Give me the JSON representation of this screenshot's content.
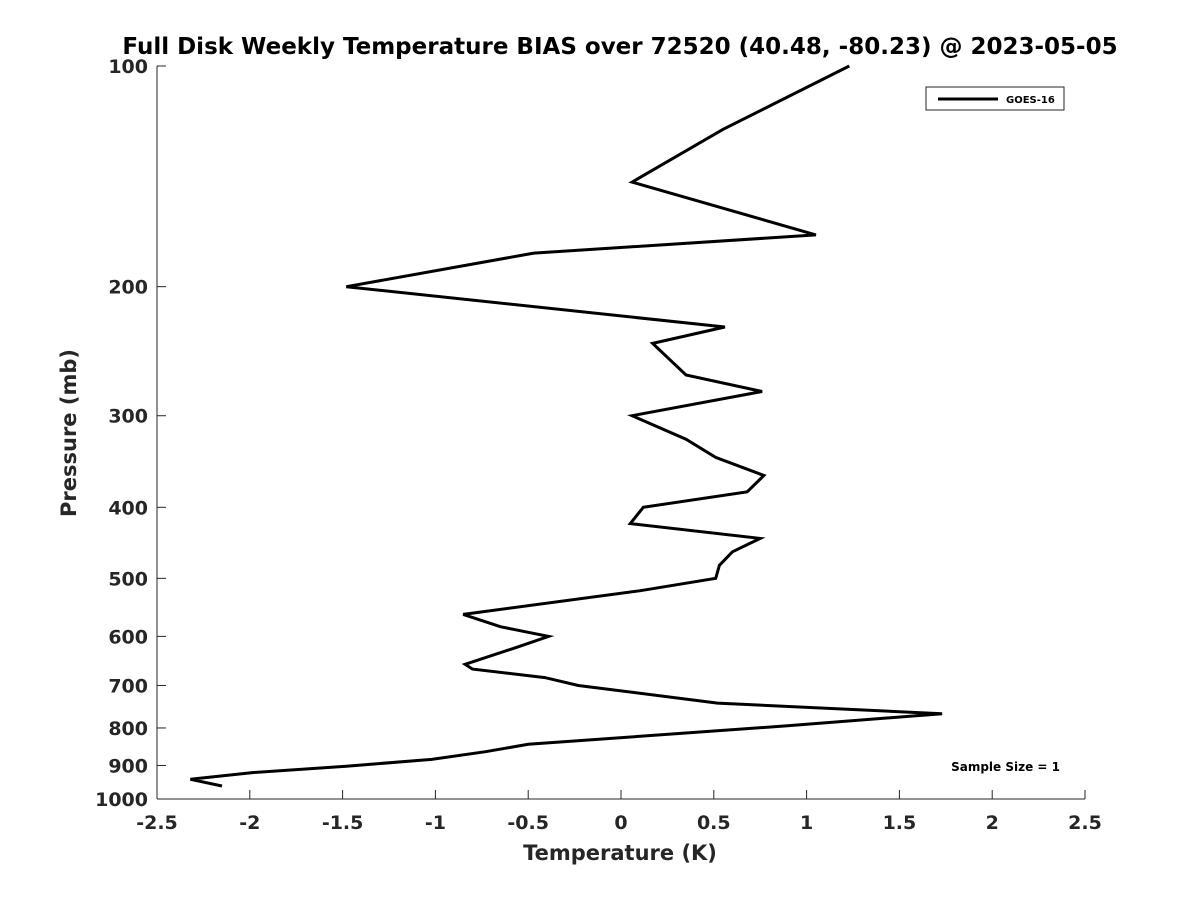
{
  "chart_data": {
    "type": "line",
    "title": "Full Disk Weekly Temperature BIAS over 72520 (40.48, -80.23) @ 2023-05-05",
    "xlabel": "Temperature (K)",
    "ylabel": "Pressure (mb)",
    "xlim": [
      -2.5,
      2.5
    ],
    "ylim": [
      1000,
      100
    ],
    "y_scale": "log",
    "y_reversed": true,
    "grid": false,
    "x_ticks": [
      -2.5,
      -2,
      -1.5,
      -1,
      -0.5,
      0,
      0.5,
      1,
      1.5,
      2,
      2.5
    ],
    "x_tick_labels": [
      "-2.5",
      "-2",
      "-1.5",
      "-1",
      "-0.5",
      "0",
      "0.5",
      "1",
      "1.5",
      "2",
      "2.5"
    ],
    "y_ticks": [
      100,
      200,
      300,
      400,
      500,
      600,
      700,
      800,
      900,
      1000
    ],
    "y_tick_labels": [
      "100",
      "200",
      "300",
      "400",
      "500",
      "600",
      "700",
      "800",
      "900",
      "1000"
    ],
    "legend_position": "top-right",
    "series": [
      {
        "name": "GOES-16",
        "color": "#000000",
        "x": [
          1.23,
          0.55,
          0.06,
          1.05,
          -0.47,
          -1.48,
          0.56,
          0.17,
          0.35,
          0.76,
          0.06,
          0.35,
          0.51,
          0.77,
          0.68,
          0.12,
          0.05,
          0.75,
          0.6,
          0.53,
          0.51,
          0.1,
          -0.85,
          -0.65,
          -0.39,
          -0.58,
          -0.84,
          -0.8,
          -0.41,
          -0.23,
          0.52,
          1.73,
          0.88,
          -0.5,
          -0.73,
          -1.02,
          -1.48,
          -1.98,
          -2.32,
          -2.15
        ],
        "y": [
          100,
          122,
          144,
          170,
          180,
          200,
          227,
          239,
          264,
          278,
          300,
          323,
          342,
          362,
          381,
          400,
          421,
          441,
          460,
          480,
          500,
          520,
          560,
          582,
          600,
          623,
          655,
          665,
          683,
          700,
          740,
          765,
          795,
          842,
          862,
          883,
          902,
          920,
          940,
          960
        ]
      }
    ],
    "annotations": [
      {
        "text": "Sample Size = 1",
        "position": "bottom-right"
      }
    ]
  }
}
